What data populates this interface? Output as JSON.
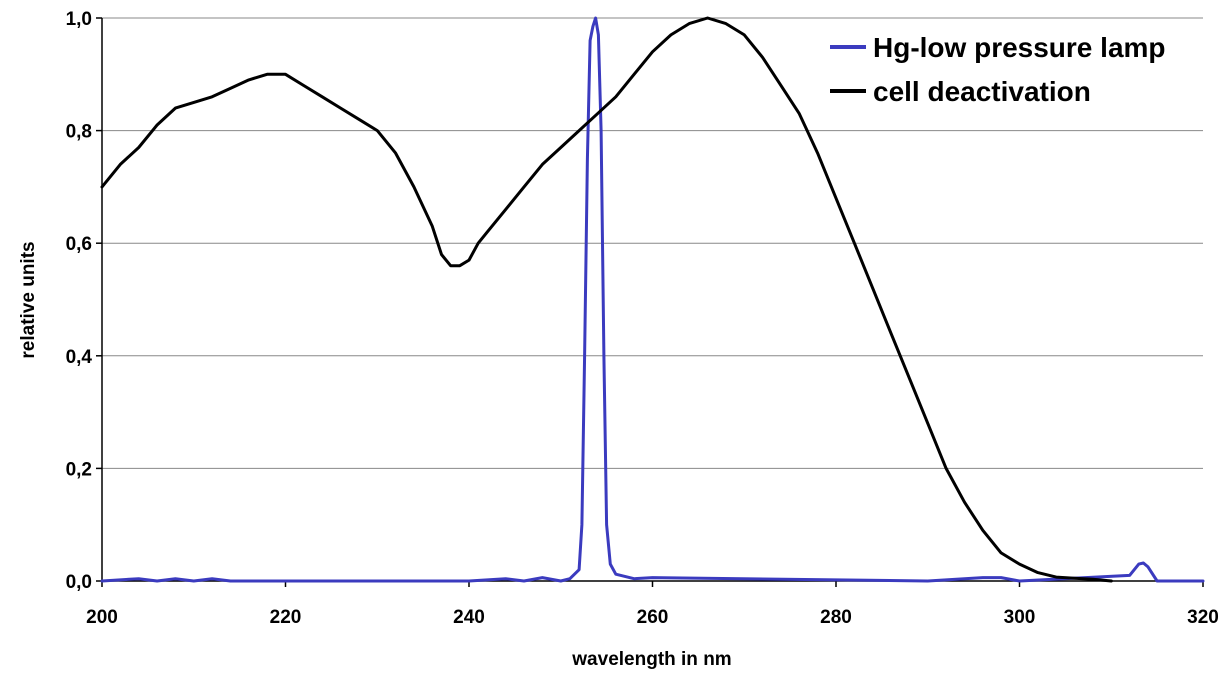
{
  "chart_data": {
    "type": "line",
    "title": "",
    "xlabel": "wavelength in nm",
    "ylabel": "relative units",
    "xlim": [
      200,
      320
    ],
    "ylim": [
      0,
      1
    ],
    "x_ticks": [
      200,
      220,
      240,
      260,
      280,
      300,
      320
    ],
    "x_tick_labels": [
      "200",
      "220",
      "240",
      "260",
      "280",
      "300",
      "320"
    ],
    "y_ticks": [
      0,
      0.2,
      0.4,
      0.6,
      0.8,
      1.0
    ],
    "y_tick_labels": [
      "0,0",
      "0,2",
      "0,4",
      "0,6",
      "0,8",
      "1,0"
    ],
    "grid": "horizontal",
    "legend_position": "top-right",
    "series": [
      {
        "name": "Hg-low pressure lamp",
        "color": "#3b3bbf",
        "x": [
          200,
          204,
          206,
          208,
          210,
          212,
          214,
          230,
          240,
          244,
          246,
          248,
          250,
          251,
          252,
          252.3,
          252.6,
          252.9,
          253.2,
          253.5,
          253.8,
          254.1,
          254.4,
          254.7,
          255,
          255.4,
          256,
          258,
          260,
          290,
          296,
          298,
          300,
          312,
          313,
          313.5,
          314,
          315,
          320
        ],
        "values": [
          0,
          0.004,
          0,
          0.004,
          0,
          0.004,
          0,
          0,
          0,
          0.004,
          0,
          0.006,
          0,
          0.004,
          0.02,
          0.1,
          0.4,
          0.75,
          0.96,
          0.985,
          1.0,
          0.97,
          0.8,
          0.4,
          0.1,
          0.03,
          0.012,
          0.004,
          0.006,
          0,
          0.006,
          0.006,
          0,
          0.01,
          0.03,
          0.032,
          0.025,
          0,
          0
        ]
      },
      {
        "name": "cell deactivation",
        "color": "#000000",
        "x": [
          200,
          202,
          204,
          206,
          208,
          210,
          212,
          214,
          216,
          218,
          220,
          222,
          224,
          226,
          228,
          230,
          232,
          234,
          236,
          237,
          238,
          239,
          240,
          241,
          242,
          244,
          246,
          248,
          250,
          252,
          254,
          256,
          258,
          260,
          262,
          264,
          266,
          268,
          270,
          272,
          274,
          276,
          278,
          280,
          282,
          284,
          286,
          288,
          290,
          292,
          294,
          296,
          298,
          300,
          302,
          304,
          306,
          308,
          310
        ],
        "values": [
          0.7,
          0.74,
          0.77,
          0.81,
          0.84,
          0.85,
          0.86,
          0.875,
          0.89,
          0.9,
          0.9,
          0.88,
          0.86,
          0.84,
          0.82,
          0.8,
          0.76,
          0.7,
          0.63,
          0.58,
          0.56,
          0.56,
          0.57,
          0.6,
          0.62,
          0.66,
          0.7,
          0.74,
          0.77,
          0.8,
          0.83,
          0.86,
          0.9,
          0.94,
          0.97,
          0.99,
          1.0,
          0.99,
          0.97,
          0.93,
          0.88,
          0.83,
          0.76,
          0.68,
          0.6,
          0.52,
          0.44,
          0.36,
          0.28,
          0.2,
          0.14,
          0.09,
          0.05,
          0.03,
          0.015,
          0.007,
          0.005,
          0.003,
          0
        ]
      }
    ]
  }
}
